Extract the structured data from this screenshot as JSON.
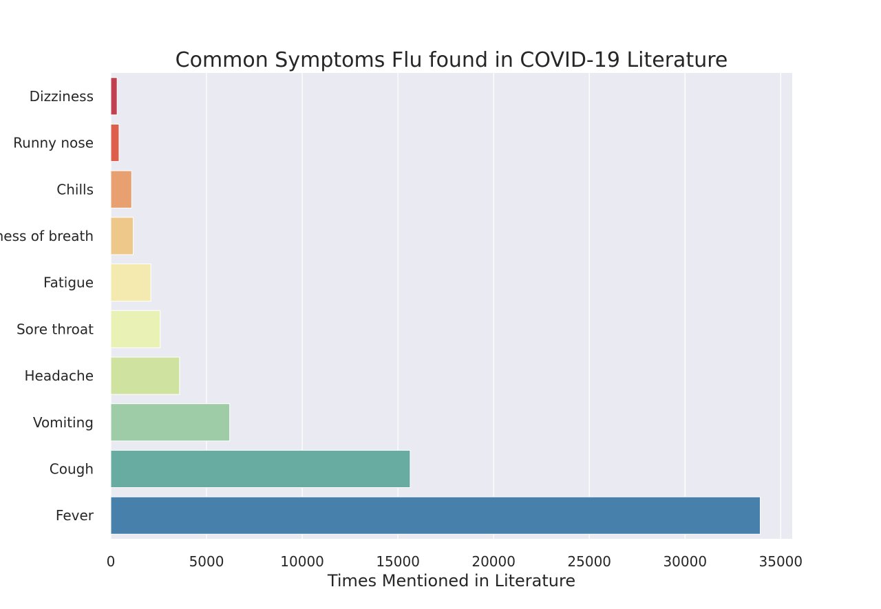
{
  "chart_data": {
    "type": "bar",
    "orientation": "horizontal",
    "title": "Common Symptoms Flu found in COVID-19 Literature",
    "xlabel": "Times Mentioned in Literature",
    "ylabel": "",
    "categories": [
      "Dizziness",
      "Runny nose",
      "Chills",
      "Shortness of breath",
      "Fatigue",
      "Sore throat",
      "Headache",
      "Vomiting",
      "Cough",
      "Fever"
    ],
    "values": [
      330,
      430,
      1090,
      1170,
      2090,
      2580,
      3590,
      6210,
      15640,
      33930
    ],
    "colors": [
      "#c0404f",
      "#dd5f4b",
      "#e8a070",
      "#eec78a",
      "#f4e9ae",
      "#eaf1b5",
      "#d0e2a0",
      "#9ecca6",
      "#67aba1",
      "#4780ab"
    ],
    "xlim": [
      0,
      35600
    ],
    "xticks": [
      0,
      5000,
      10000,
      15000,
      20000,
      25000,
      30000,
      35000
    ],
    "xtick_labels": [
      "0",
      "5000",
      "10000",
      "15000",
      "20000",
      "25000",
      "30000",
      "35000"
    ],
    "grid": true,
    "grid_axis": "x",
    "background": "#eaeaf2",
    "grid_color": "#ffffff"
  }
}
